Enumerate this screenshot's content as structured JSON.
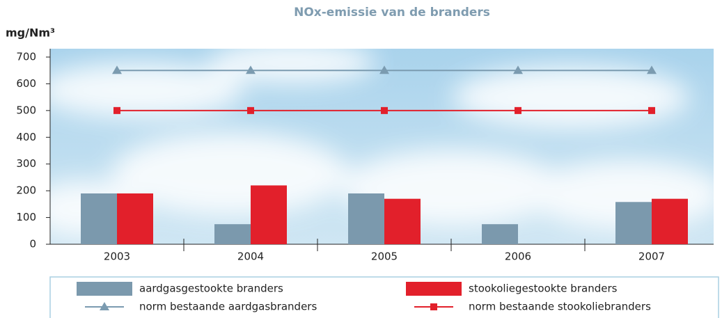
{
  "chart_data": {
    "type": "bar",
    "title": "NOx-emissie van de branders",
    "ylabel": "mg/Nm³",
    "categories": [
      "2003",
      "2004",
      "2005",
      "2006",
      "2007"
    ],
    "series": [
      {
        "name": "aardgasgestookte branders",
        "kind": "bar",
        "color": "#7b99ad",
        "values": [
          190,
          75,
          190,
          75,
          158
        ]
      },
      {
        "name": "stookoliegestookte branders",
        "kind": "bar",
        "color": "#e2202b",
        "values": [
          190,
          220,
          170,
          null,
          170
        ]
      },
      {
        "name": "norm bestaande aardgasbranders",
        "kind": "line",
        "marker": "triangle",
        "color": "#7b9bb0",
        "values": [
          650,
          650,
          650,
          650,
          650
        ]
      },
      {
        "name": "norm bestaande stookoliebranders",
        "kind": "line",
        "marker": "square",
        "color": "#e2202b",
        "values": [
          500,
          500,
          500,
          500,
          500
        ]
      }
    ],
    "ylim": [
      0,
      700
    ],
    "yticks": [
      0,
      100,
      200,
      300,
      400,
      500,
      600,
      700
    ]
  }
}
